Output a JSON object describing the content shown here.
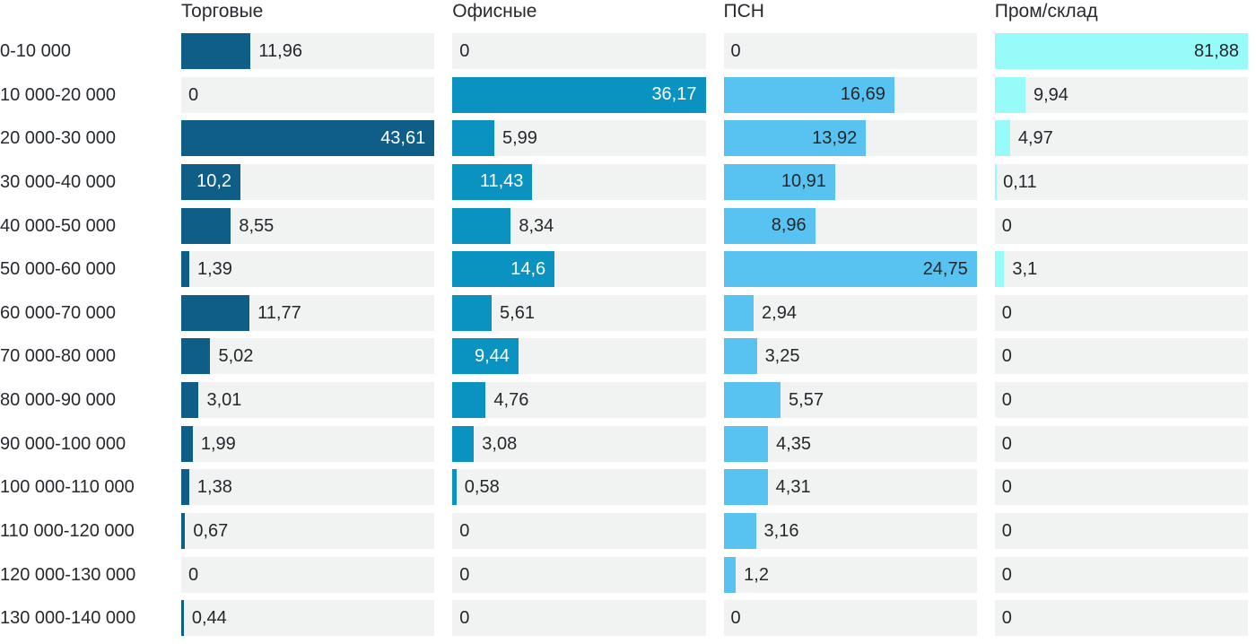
{
  "chart_data": {
    "type": "bar",
    "orientation": "horizontal",
    "title": "",
    "xlabel": "",
    "ylabel": "",
    "normalization": "each column scaled to its own max value",
    "grid": false,
    "legend_position": "column headers on top",
    "track_color": "#f1f2f2",
    "text_color": "#24282c",
    "categories": [
      "0-10 000",
      "10 000-20 000",
      "20 000-30 000",
      "30 000-40 000",
      "40 000-50 000",
      "50 000-60 000",
      "60 000-70 000",
      "70 000-80 000",
      "80 000-90 000",
      "90 000-100 000",
      "100 000-110 000",
      "110 000-120 000",
      "120 000-130 000",
      "130 000-140 000"
    ],
    "series": [
      {
        "name": "Торговые",
        "color": "#0e5e87",
        "inside_label_color": "#ffffff",
        "values": [
          11.96,
          0,
          43.61,
          10.2,
          8.55,
          1.39,
          11.77,
          5.02,
          3.01,
          1.99,
          1.38,
          0.67,
          0,
          0.44
        ],
        "labels": [
          "11,96",
          "0",
          "43,61",
          "10,2",
          "8,55",
          "1,39",
          "11,77",
          "5,02",
          "3,01",
          "1,99",
          "1,38",
          "0,67",
          "0",
          "0,44"
        ],
        "label_inside": [
          false,
          false,
          true,
          true,
          false,
          false,
          false,
          false,
          false,
          false,
          false,
          false,
          false,
          false
        ]
      },
      {
        "name": "Офисные",
        "color": "#0a93c0",
        "inside_label_color": "#ffffff",
        "values": [
          0,
          36.17,
          5.99,
          11.43,
          8.34,
          14.6,
          5.61,
          9.44,
          4.76,
          3.08,
          0.58,
          0,
          0,
          0
        ],
        "labels": [
          "0",
          "36,17",
          "5,99",
          "11,43",
          "8,34",
          "14,6",
          "5,61",
          "9,44",
          "4,76",
          "3,08",
          "0,58",
          "0",
          "0",
          "0"
        ],
        "label_inside": [
          false,
          true,
          false,
          true,
          false,
          true,
          false,
          true,
          false,
          false,
          false,
          false,
          false,
          false
        ]
      },
      {
        "name": "ПСН",
        "color": "#58c3f0",
        "inside_label_color": "#24282c",
        "values": [
          0,
          16.69,
          13.92,
          10.91,
          8.96,
          24.75,
          2.94,
          3.25,
          5.57,
          4.35,
          4.31,
          3.16,
          1.2,
          0
        ],
        "labels": [
          "0",
          "16,69",
          "13,92",
          "10,91",
          "8,96",
          "24,75",
          "2,94",
          "3,25",
          "5,57",
          "4,35",
          "4,31",
          "3,16",
          "1,2",
          "0"
        ],
        "label_inside": [
          false,
          true,
          true,
          true,
          true,
          true,
          false,
          false,
          false,
          false,
          false,
          false,
          false,
          false
        ]
      },
      {
        "name": "Пром/склад",
        "color": "#97fbf9",
        "inside_label_color": "#24282c",
        "values": [
          81.88,
          9.94,
          4.97,
          0.11,
          0,
          3.1,
          0,
          0,
          0,
          0,
          0,
          0,
          0,
          0
        ],
        "labels": [
          "81,88",
          "9,94",
          "4,97",
          "0,11",
          "0",
          "3,1",
          "0",
          "0",
          "0",
          "0",
          "0",
          "0",
          "0",
          "0"
        ],
        "label_inside": [
          true,
          false,
          false,
          false,
          false,
          false,
          false,
          false,
          false,
          false,
          false,
          false,
          false,
          false
        ]
      }
    ]
  }
}
